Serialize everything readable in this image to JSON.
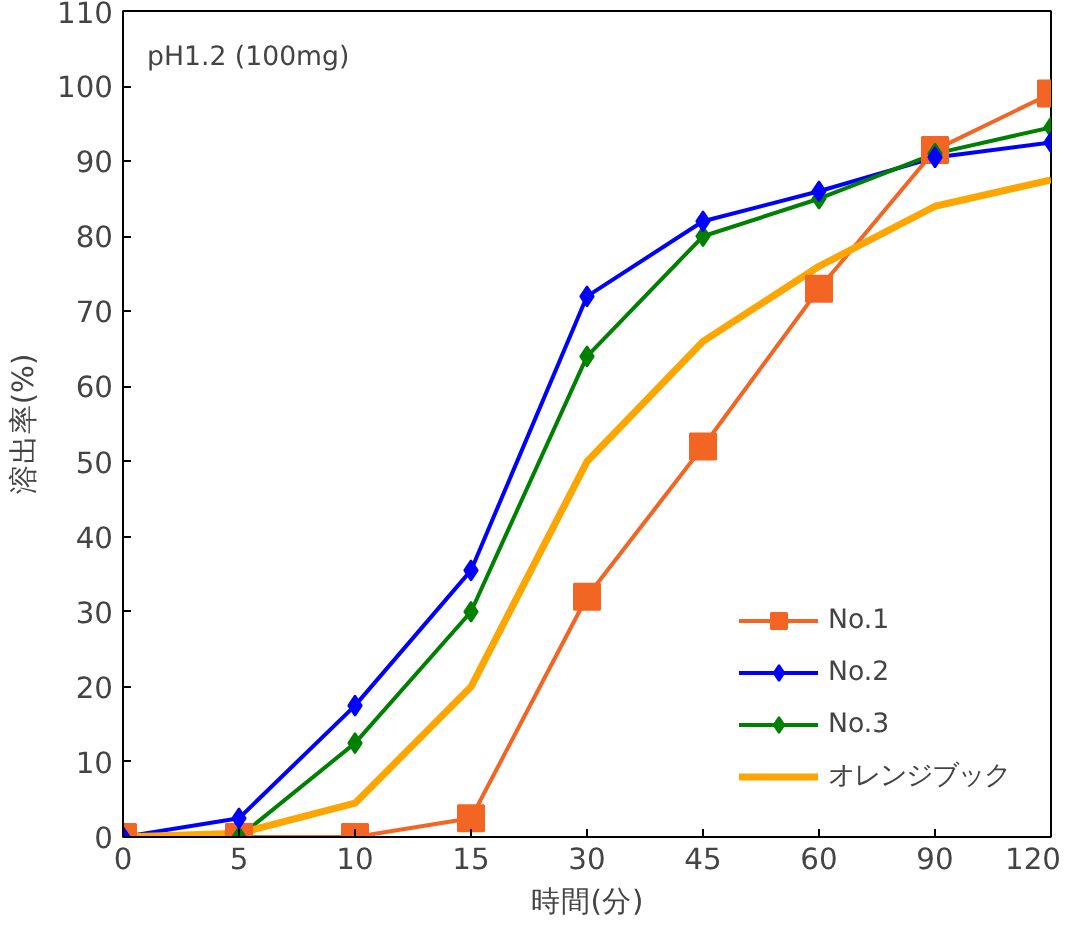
{
  "chart_data": {
    "type": "line",
    "xlabel": "時間(分)",
    "ylabel": "溶出率(%)",
    "annotations": [
      "pH1.2 (100mg)"
    ],
    "categories": [
      "0",
      "5",
      "10",
      "15",
      "30",
      "45",
      "60",
      "90",
      "120"
    ],
    "ylim": [
      0,
      110
    ],
    "yticks": [
      0,
      10,
      20,
      30,
      40,
      50,
      60,
      70,
      80,
      90,
      100,
      110
    ],
    "grid": false,
    "legend": "bottom right",
    "series": [
      {
        "name": "No.1",
        "color": "#f26522",
        "marker": "square",
        "values": [
          0,
          0,
          0,
          2.5,
          32,
          52,
          73,
          91.5,
          99
        ]
      },
      {
        "name": "No.2",
        "color": "#0000ff",
        "marker": "diamond",
        "values": [
          0,
          2.5,
          17.5,
          35.5,
          72,
          82,
          86,
          90.5,
          92.5
        ]
      },
      {
        "name": "No.3",
        "color": "#008000",
        "marker": "diamond",
        "values": [
          0,
          0,
          12.5,
          30,
          64,
          80,
          85,
          91,
          94.5
        ]
      },
      {
        "name": "オレンジブック",
        "color": "#ffa500",
        "marker": "none",
        "values": [
          0,
          0.5,
          4.5,
          20,
          50,
          66,
          76,
          84,
          87.5
        ]
      }
    ]
  }
}
